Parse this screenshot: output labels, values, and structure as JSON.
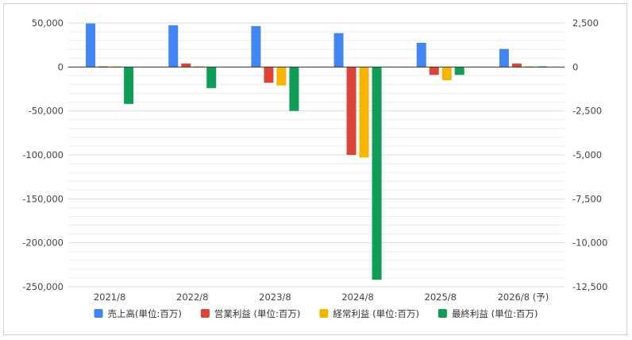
{
  "chart_data": {
    "type": "bar",
    "categories": [
      "2021/8",
      "2022/8",
      "2023/8",
      "2024/8",
      "2025/8",
      "2026/8 (予)"
    ],
    "series": [
      {
        "name": "売上高(単位:百万)",
        "axis": "left",
        "color": "#4285f4",
        "values": [
          49500,
          47500,
          46500,
          38500,
          27500,
          20500
        ]
      },
      {
        "name": "営業利益 (単位:百万)",
        "axis": "right",
        "color": "#db4437",
        "values": [
          -20,
          200,
          -900,
          -5000,
          -450,
          200
        ]
      },
      {
        "name": "経常利益 (単位:百万)",
        "axis": "right",
        "color": "#f4b400",
        "values": [
          50,
          0,
          -1050,
          -5150,
          -750,
          30
        ]
      },
      {
        "name": "最終利益 (単位:百万)",
        "axis": "right",
        "color": "#0f9d58",
        "values": [
          -2100,
          -1200,
          -2500,
          -12100,
          -450,
          30
        ]
      }
    ],
    "left_axis": {
      "ylim": [
        -250000,
        50000
      ],
      "ticks": [
        "50,000",
        "0",
        "-50,000",
        "-100,000",
        "-150,000",
        "-200,000",
        "-250,000"
      ]
    },
    "right_axis": {
      "ylim": [
        -12500,
        2500
      ],
      "ticks": [
        "2,500",
        "0",
        "-2,500",
        "-5,000",
        "-7,500",
        "-10,000",
        "-12,500"
      ]
    },
    "grid": true,
    "legend_position": "bottom"
  }
}
